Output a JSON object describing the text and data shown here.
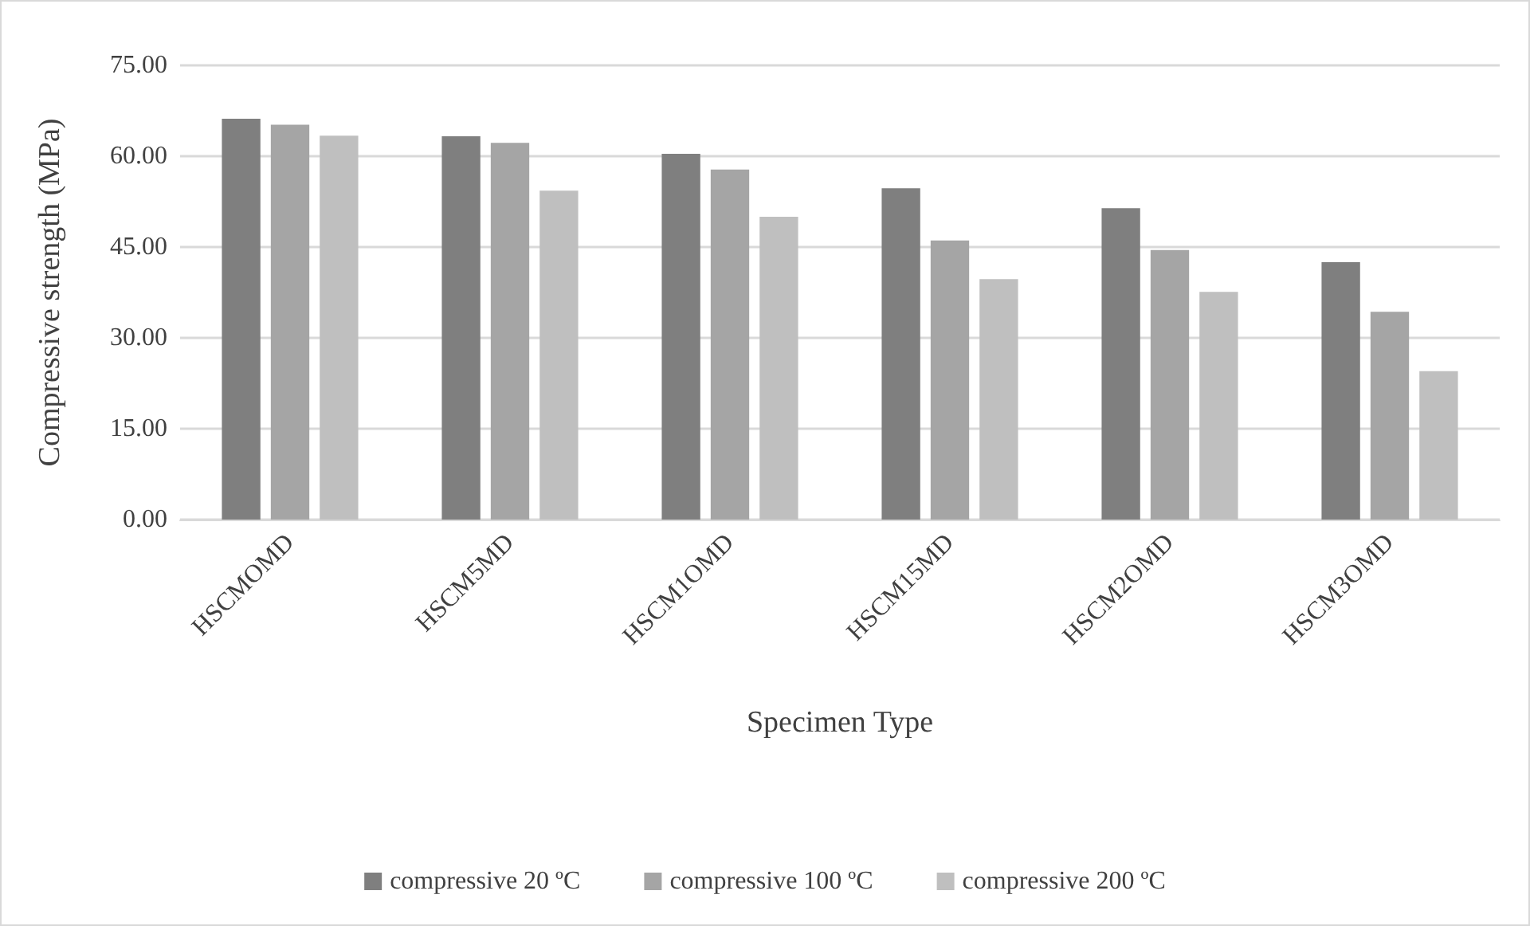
{
  "chart_data": {
    "type": "bar",
    "xlabel": "Specimen Type",
    "ylabel": "Compressive strength (MPa)",
    "categories": [
      "HSCMOMD",
      "HSCM5MD",
      "HSCM1OMD",
      "HSCM15MD",
      "HSCM2OMD",
      "HSCM3OMD"
    ],
    "series": [
      {
        "name": "compressive 20 ºC",
        "color": "#7f7f7f",
        "values": [
          66.2,
          63.3,
          60.4,
          54.7,
          51.4,
          42.5
        ]
      },
      {
        "name": "compressive 100 ºC",
        "color": "#a5a5a5",
        "values": [
          65.2,
          62.2,
          57.8,
          46.1,
          44.5,
          34.3
        ]
      },
      {
        "name": "compressive 200 ºC",
        "color": "#bfbfbf",
        "values": [
          63.4,
          54.3,
          50.0,
          39.7,
          37.6,
          24.5
        ]
      }
    ],
    "ylim": [
      0,
      75
    ],
    "yticks": [
      {
        "value": 0,
        "label": "0.00"
      },
      {
        "value": 15,
        "label": "15.00"
      },
      {
        "value": 30,
        "label": "30.00"
      },
      {
        "value": 45,
        "label": "45.00"
      },
      {
        "value": 60,
        "label": "60.00"
      },
      {
        "value": 75,
        "label": "75.00"
      }
    ],
    "grid": "y",
    "legend": "bottom"
  }
}
